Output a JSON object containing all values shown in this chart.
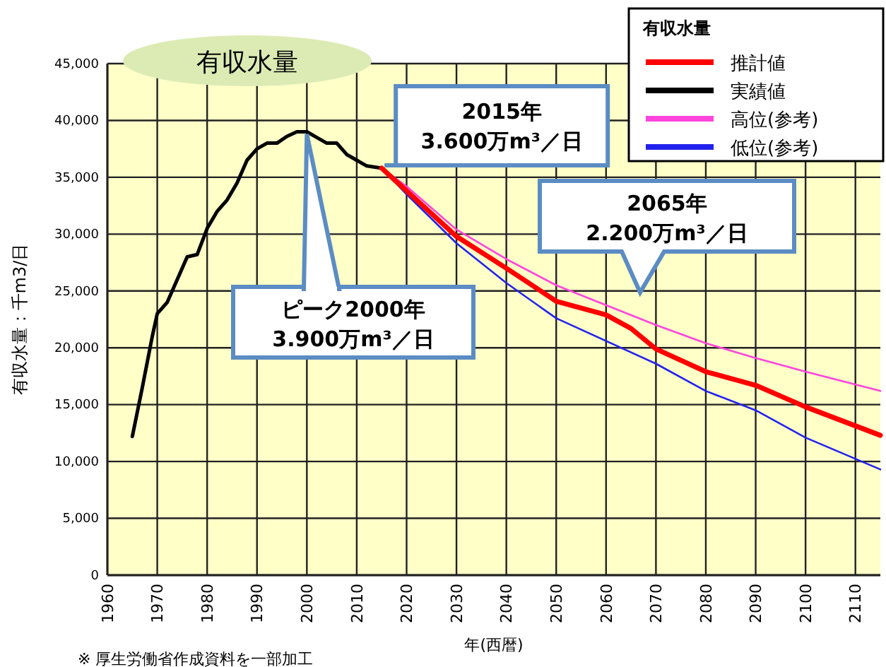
{
  "chart_data": {
    "type": "line",
    "xlabel": "年(西暦)",
    "ylabel": "有収水量：千m3/日",
    "legend_title": "有収水量",
    "legend": "top right",
    "grid": true,
    "xlim": [
      1960,
      2115
    ],
    "xticks": [
      1960,
      1970,
      1980,
      1990,
      2000,
      2010,
      2020,
      2030,
      2040,
      2050,
      2060,
      2070,
      2080,
      2090,
      2100,
      2110
    ],
    "ylim": [
      0,
      45000
    ],
    "yticks": [
      {
        "value": 0,
        "label": "0"
      },
      {
        "value": 5000,
        "label": "5,000"
      },
      {
        "value": 10000,
        "label": "10,000"
      },
      {
        "value": 15000,
        "label": "15,000"
      },
      {
        "value": 20000,
        "label": "20,000"
      },
      {
        "value": 25000,
        "label": "25,000"
      },
      {
        "value": 30000,
        "label": "30,000"
      },
      {
        "value": 35000,
        "label": "35,000"
      },
      {
        "value": 40000,
        "label": "40,000"
      },
      {
        "value": 45000,
        "label": "45,000"
      }
    ],
    "series": [
      {
        "name": "推計値",
        "color": "#ff0000",
        "x": [
          2015,
          2020,
          2030,
          2040,
          2050,
          2060,
          2065,
          2070,
          2080,
          2090,
          2100,
          2115
        ],
        "values": [
          35800,
          33800,
          29800,
          27000,
          24100,
          22900,
          21700,
          19900,
          17900,
          16700,
          14800,
          12300
        ]
      },
      {
        "name": "実績値",
        "color": "#000000",
        "x": [
          1965,
          1967,
          1969,
          1970,
          1972,
          1974,
          1976,
          1978,
          1980,
          1982,
          1984,
          1986,
          1988,
          1990,
          1992,
          1994,
          1996,
          1998,
          2000,
          2002,
          2004,
          2006,
          2008,
          2010,
          2012,
          2015
        ],
        "values": [
          12200,
          16500,
          21000,
          23000,
          24000,
          26000,
          28000,
          28200,
          30500,
          32000,
          33000,
          34500,
          36500,
          37500,
          38000,
          38000,
          38600,
          39000,
          39000,
          38500,
          38000,
          38000,
          37000,
          36500,
          36000,
          35800
        ]
      },
      {
        "name": "高位(参考)",
        "color": "#ff44dd",
        "x": [
          2015,
          2020,
          2030,
          2040,
          2050,
          2070,
          2080,
          2090,
          2100,
          2115
        ],
        "values": [
          35800,
          34200,
          30400,
          27800,
          25500,
          22000,
          20400,
          19100,
          17900,
          16200
        ]
      },
      {
        "name": "低位(参考)",
        "color": "#2222ee",
        "x": [
          2015,
          2020,
          2030,
          2040,
          2050,
          2070,
          2080,
          2090,
          2100,
          2115
        ],
        "values": [
          35800,
          33500,
          29200,
          25700,
          22600,
          18600,
          16200,
          14500,
          12100,
          9300
        ]
      }
    ],
    "annotations": [
      "有収水量",
      {
        "text": "2015年\n3.600万m³／日",
        "x": 2015,
        "y": 35800
      },
      {
        "text": "ピーク2000年\n3.900万m³／日",
        "x": 2000,
        "y": 38800
      },
      "2065年\n2.200万m³／日",
      "※ 厚生労働省作成資料を一部加工"
    ]
  }
}
